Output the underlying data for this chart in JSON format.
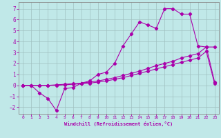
{
  "xlabel": "Windchill (Refroidissement éolien,°C)",
  "background_color": "#c0e8e8",
  "grid_color": "#a0c0c0",
  "line_color": "#aa00aa",
  "xlim": [
    -0.5,
    23.5
  ],
  "ylim": [
    -2.6,
    7.6
  ],
  "xticks": [
    0,
    1,
    2,
    3,
    4,
    5,
    6,
    7,
    8,
    9,
    10,
    11,
    12,
    13,
    14,
    15,
    16,
    17,
    18,
    19,
    20,
    21,
    22,
    23
  ],
  "yticks": [
    -2,
    -1,
    0,
    1,
    2,
    3,
    4,
    5,
    6,
    7
  ],
  "series1_x": [
    0,
    1,
    2,
    3,
    4,
    5,
    6,
    7,
    8,
    9,
    10,
    11,
    12,
    13,
    14,
    15,
    16,
    17,
    18,
    19,
    20,
    21,
    22,
    23
  ],
  "series1_y": [
    0.0,
    0.0,
    -0.7,
    -1.2,
    -2.3,
    -0.3,
    -0.2,
    0.2,
    0.4,
    1.0,
    1.2,
    2.0,
    3.6,
    4.7,
    5.8,
    5.5,
    5.2,
    7.0,
    7.0,
    6.5,
    6.5,
    3.6,
    3.5,
    0.3
  ],
  "series2_x": [
    0,
    1,
    2,
    3,
    4,
    5,
    6,
    7,
    8,
    9,
    10,
    11,
    12,
    13,
    14,
    15,
    16,
    17,
    18,
    19,
    20,
    21,
    22,
    23
  ],
  "series2_y": [
    0.0,
    0.0,
    0.0,
    0.0,
    0.05,
    0.1,
    0.15,
    0.2,
    0.3,
    0.4,
    0.55,
    0.7,
    0.9,
    1.1,
    1.3,
    1.55,
    1.8,
    2.0,
    2.2,
    2.5,
    2.7,
    2.9,
    3.5,
    3.5
  ],
  "series3_x": [
    0,
    1,
    2,
    3,
    4,
    5,
    6,
    7,
    8,
    9,
    10,
    11,
    12,
    13,
    14,
    15,
    16,
    17,
    18,
    19,
    20,
    21,
    22,
    23
  ],
  "series3_y": [
    0.0,
    0.0,
    0.0,
    0.0,
    0.0,
    0.05,
    0.1,
    0.15,
    0.2,
    0.3,
    0.4,
    0.55,
    0.7,
    0.9,
    1.1,
    1.3,
    1.5,
    1.7,
    1.9,
    2.1,
    2.3,
    2.5,
    3.1,
    0.15
  ]
}
